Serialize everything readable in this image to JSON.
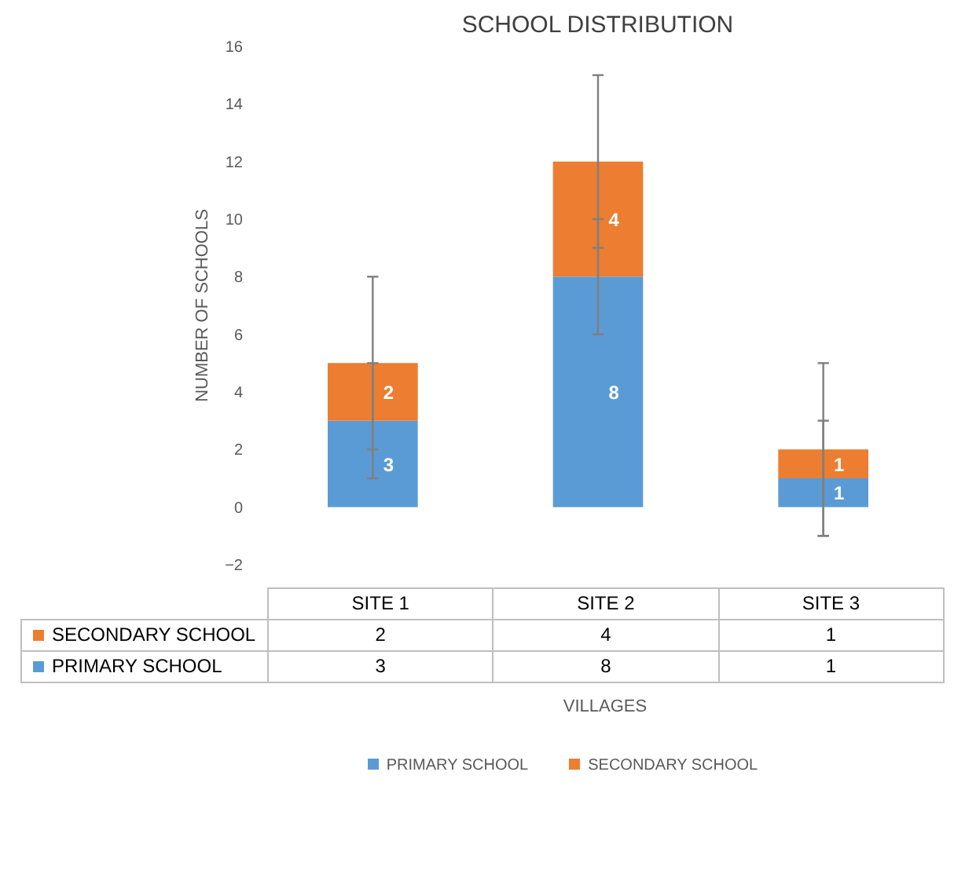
{
  "chart_data": {
    "type": "bar",
    "title": "SCHOOL DISTRIBUTION",
    "xlabel": "VILLAGES",
    "ylabel": "NUMBER OF SCHOOLS",
    "categories": [
      "SITE 1",
      "SITE 2",
      "SITE 3"
    ],
    "series": [
      {
        "name": "PRIMARY SCHOOL",
        "color": "#5b9bd5",
        "values": [
          3,
          8,
          1
        ],
        "errors": [
          2,
          2,
          2
        ],
        "value_labels": [
          "3",
          "8",
          "1"
        ]
      },
      {
        "name": "SECONDARY SCHOOL",
        "color": "#ed7d31",
        "values": [
          2,
          4,
          1
        ],
        "errors": [
          3,
          3,
          3
        ],
        "value_labels": [
          "2",
          "4",
          "1"
        ]
      }
    ],
    "stacked": true,
    "ylim": [
      -2,
      16
    ],
    "yticks": [
      -2,
      0,
      2,
      4,
      6,
      8,
      10,
      12,
      14,
      16
    ],
    "grid": false,
    "legend": "bottom"
  }
}
